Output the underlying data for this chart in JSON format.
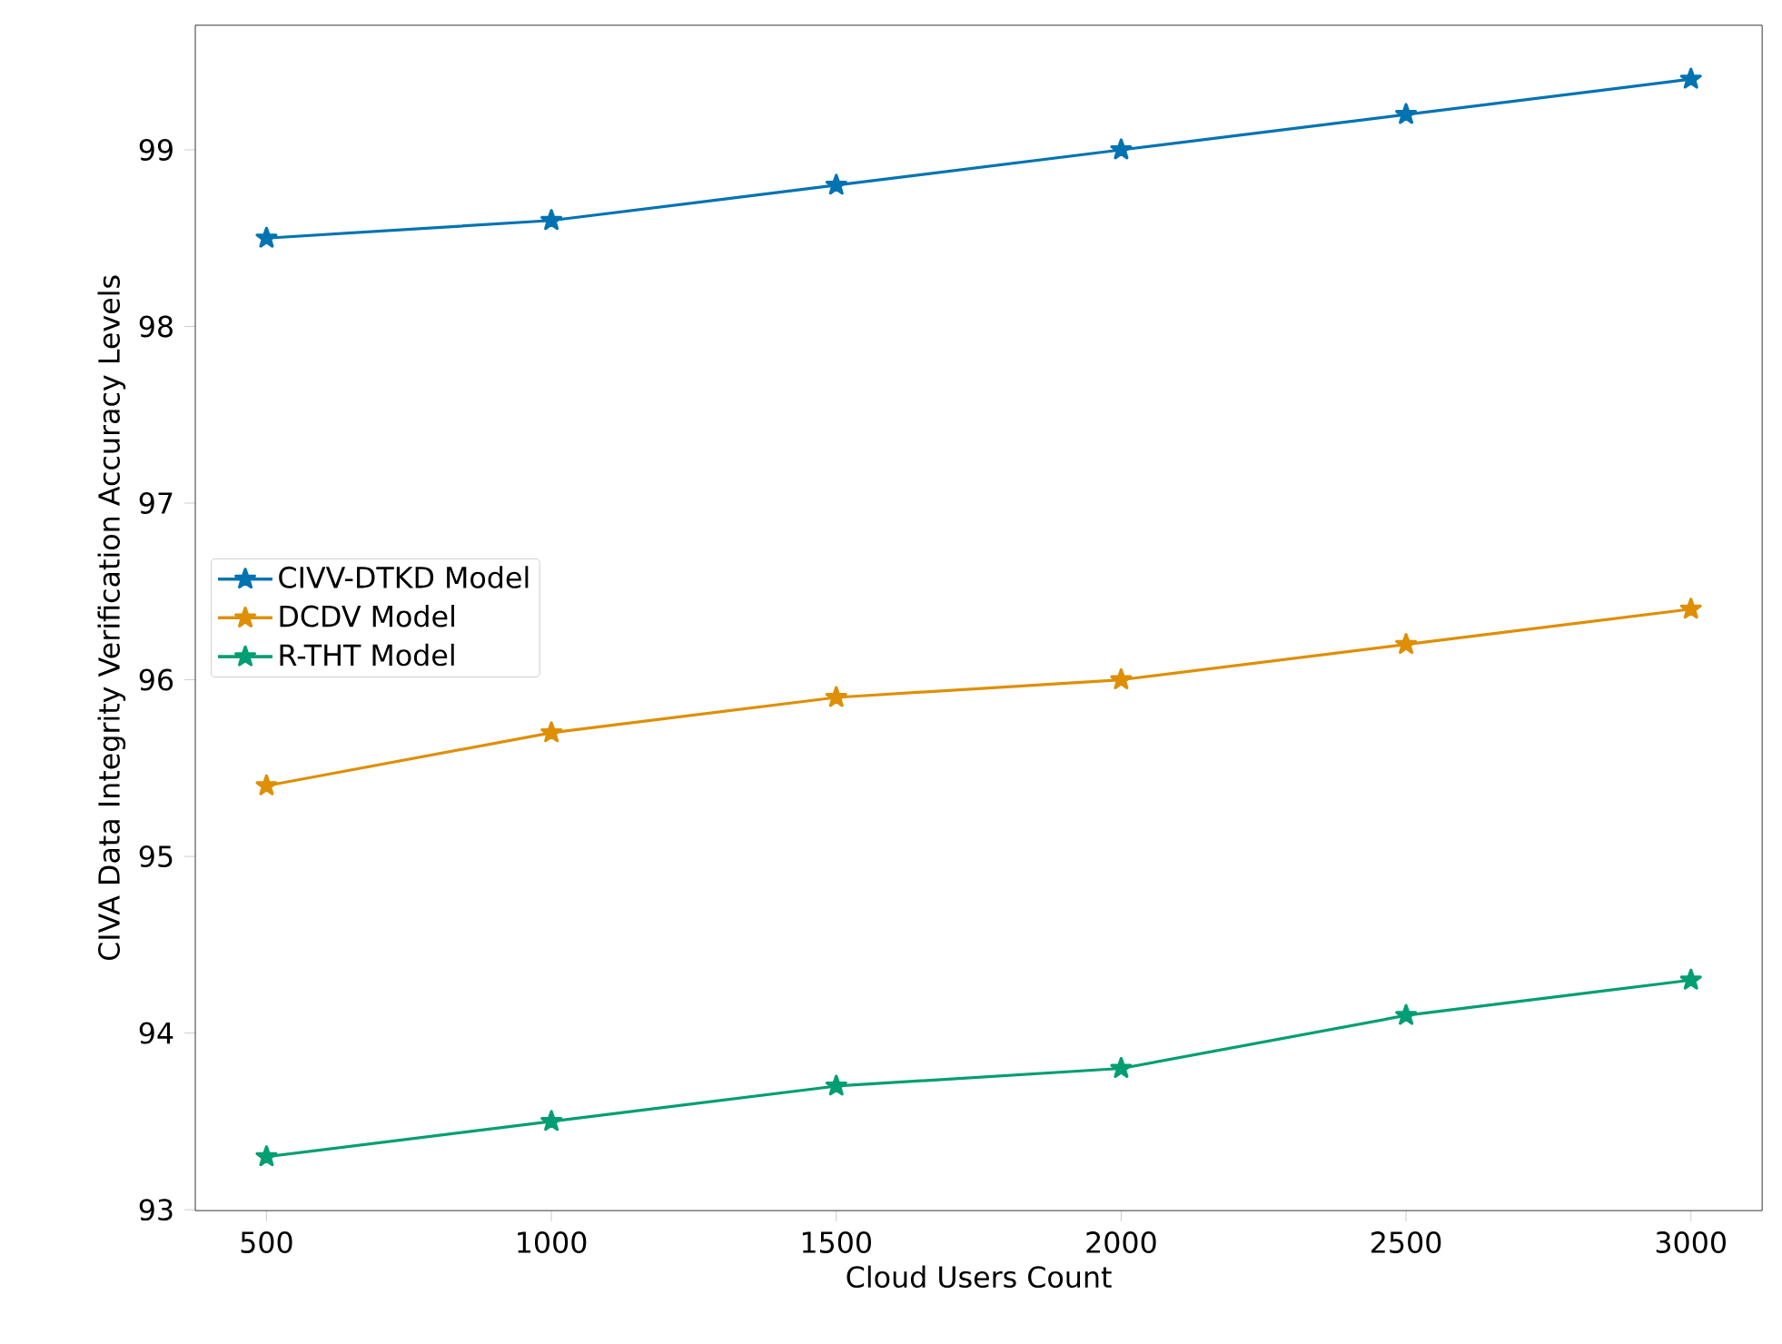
{
  "chart_data": {
    "type": "line",
    "xlabel": "Cloud Users Count",
    "ylabel": "CIVA Data Integrity Verification Accuracy Levels",
    "x": [
      500,
      1000,
      1500,
      2000,
      2500,
      3000
    ],
    "series": [
      {
        "name": "CIVV-DTKD Model",
        "color": "#0173b2",
        "values": [
          98.5,
          98.6,
          98.8,
          99.0,
          99.2,
          99.4
        ]
      },
      {
        "name": "DCDV Model",
        "color": "#de8f05",
        "values": [
          95.4,
          95.7,
          95.9,
          96.0,
          96.2,
          96.4
        ]
      },
      {
        "name": "R-THT Model",
        "color": "#029e73",
        "values": [
          93.3,
          93.5,
          93.7,
          93.8,
          94.1,
          94.3
        ]
      }
    ],
    "xlim": [
      375,
      3125
    ],
    "ylim": [
      92.995,
      99.705
    ],
    "xticks": [
      500,
      1000,
      1500,
      2000,
      2500,
      3000
    ],
    "yticks": [
      93,
      94,
      95,
      96,
      97,
      98,
      99
    ],
    "grid": false,
    "legend": "left",
    "marker": "star",
    "line_style": "solid"
  }
}
